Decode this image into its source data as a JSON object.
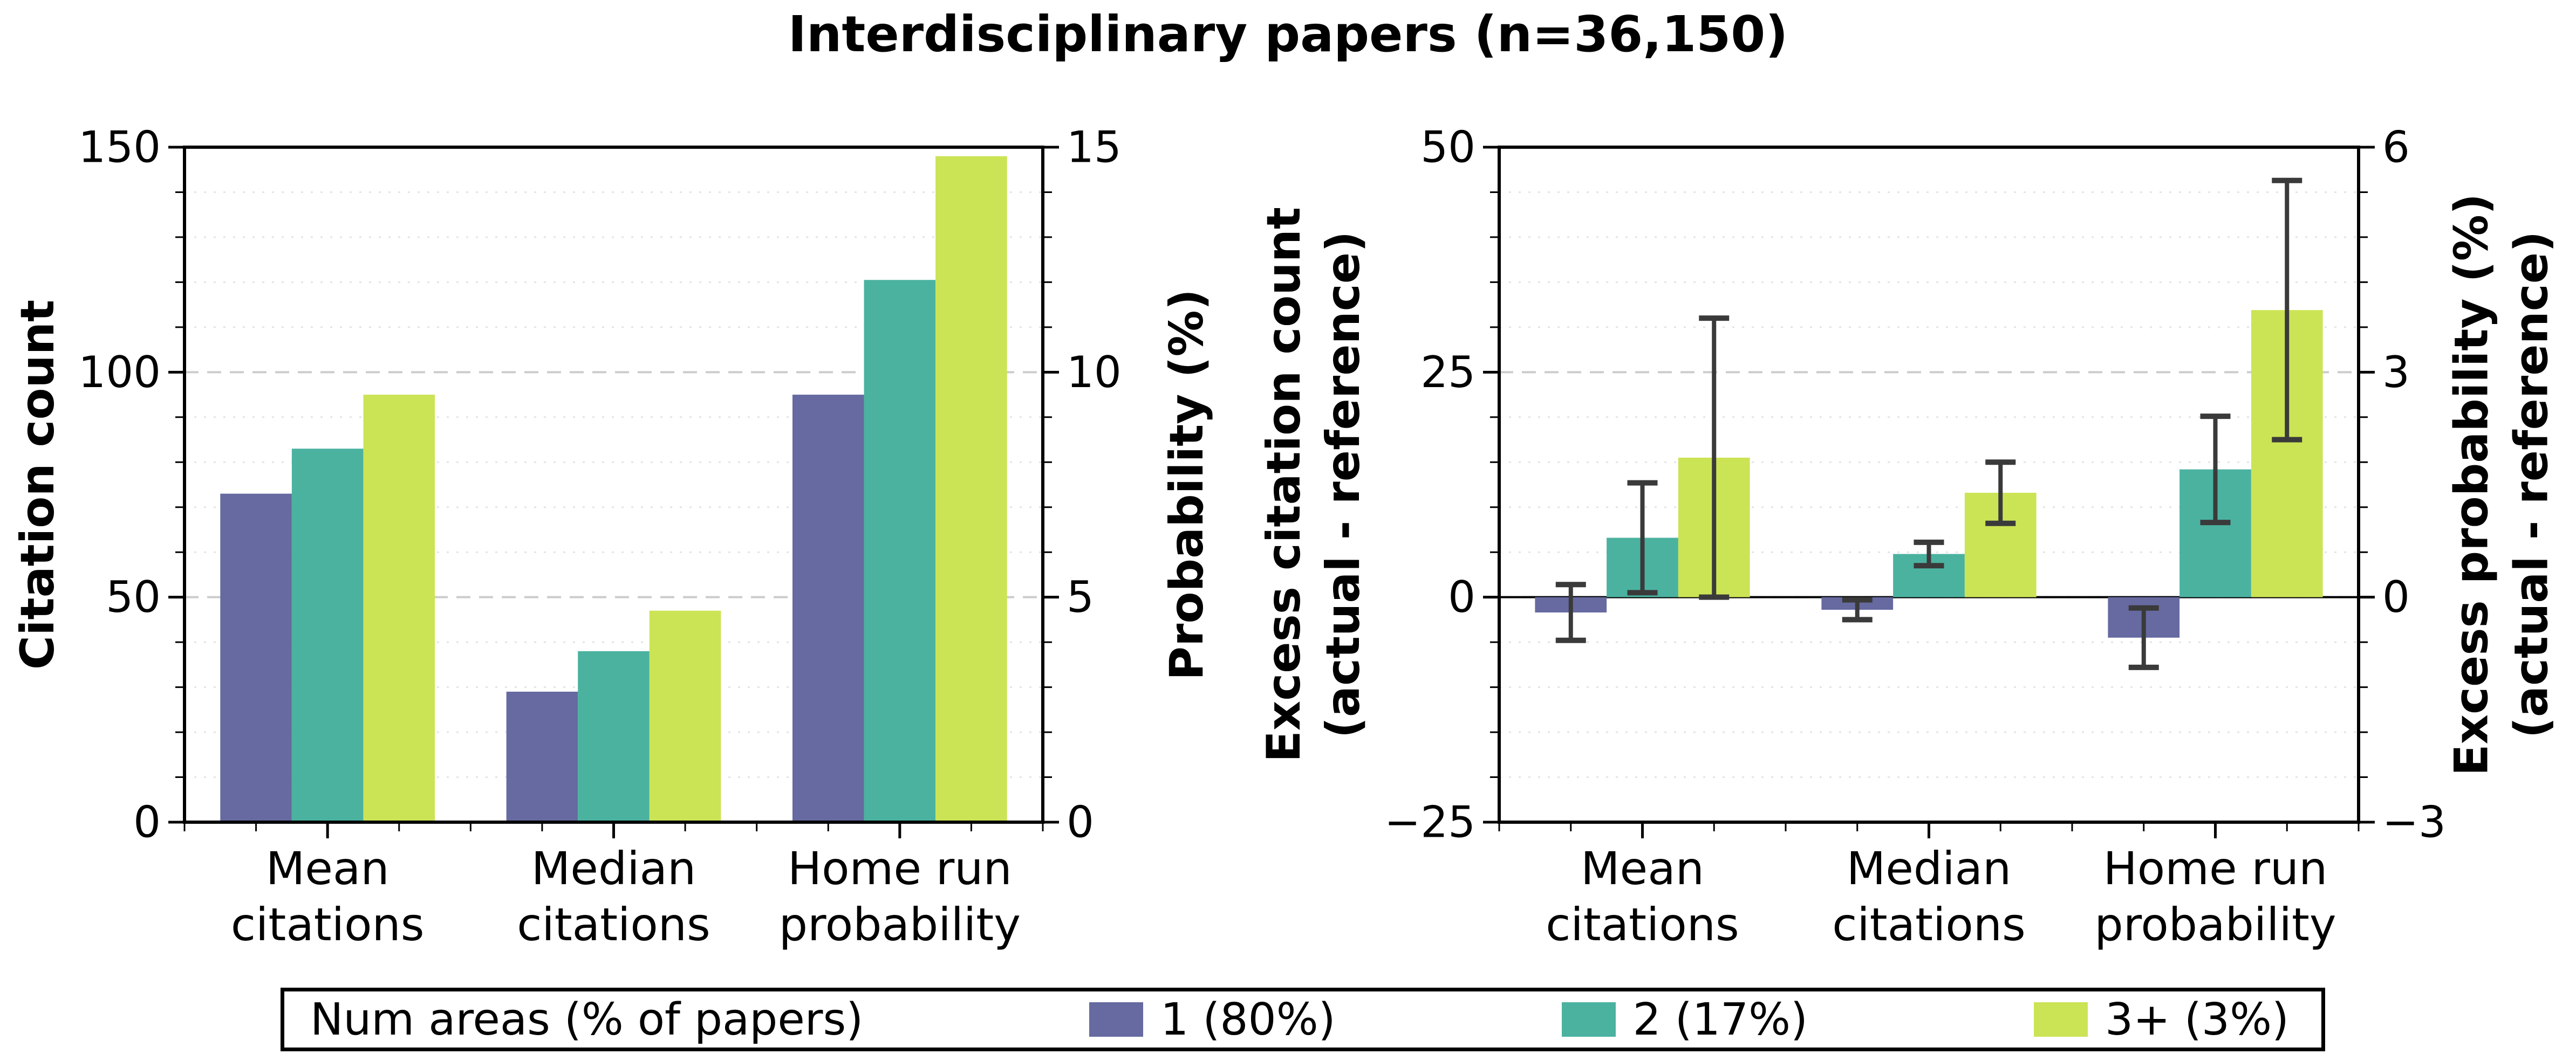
{
  "title": "Interdisciplinary papers (n=36,150)",
  "colors": {
    "purple": "#666AA0",
    "teal": "#4BB2A0",
    "green": "#CBE455",
    "errorbar": "#3A3A3A",
    "grid_major": "#cccccc",
    "grid_minor": "#e4e4e4",
    "axis": "#000000",
    "background": "#ffffff"
  },
  "legend": {
    "title": "Num areas (% of papers)",
    "items": [
      {
        "label": "1 (80%)",
        "color_key": "purple"
      },
      {
        "label": "2 (17%)",
        "color_key": "teal"
      },
      {
        "label": "3+ (3%)",
        "color_key": "green"
      }
    ],
    "position": "bottom"
  },
  "chart_data": [
    {
      "type": "bar",
      "panel": "left",
      "categories": [
        "Mean\ncitations",
        "Median\ncitations",
        "Home run\nprobability"
      ],
      "left_axis": {
        "label": "Citation count",
        "lim": [
          0,
          150
        ],
        "ticks": [
          0,
          50,
          100,
          150
        ],
        "tick_labels": [
          "0",
          "50",
          "100",
          "150"
        ],
        "minor_step": 10
      },
      "right_axis": {
        "label": "Probability (%)",
        "lim": [
          0,
          15
        ],
        "ticks": [
          0,
          5,
          10,
          15
        ],
        "tick_labels": [
          "0",
          "5",
          "10",
          "15"
        ],
        "minor_step": 1
      },
      "grid": {
        "major": "dashed",
        "minor": "dotted"
      },
      "series": [
        {
          "name": "1 (80%)",
          "color_key": "purple",
          "values": [
            73,
            29,
            95
          ]
        },
        {
          "name": "2 (17%)",
          "color_key": "teal",
          "values": [
            83,
            38,
            120.5
          ]
        },
        {
          "name": "3+ (3%)",
          "color_key": "green",
          "values": [
            95,
            47,
            148
          ]
        }
      ],
      "note": "Home run probability bars are read on the right axis: 9.5%, 12.05%, 14.8%"
    },
    {
      "type": "bar",
      "panel": "right",
      "categories": [
        "Mean\ncitations",
        "Median\ncitations",
        "Home run\nprobability"
      ],
      "left_axis": {
        "label": "Excess citation count\n(actual - reference)",
        "lim": [
          -25,
          50
        ],
        "ticks": [
          -25,
          0,
          25,
          50
        ],
        "tick_labels": [
          "−25",
          "0",
          "25",
          "50"
        ],
        "minor_step": 5
      },
      "right_axis": {
        "label": "Excess probability (%)\n(actual - reference)",
        "lim": [
          -3,
          6
        ],
        "ticks": [
          -3,
          0,
          3,
          6
        ],
        "tick_labels": [
          "−3",
          "0",
          "3",
          "6"
        ],
        "minor_step": 0.6
      },
      "grid": {
        "major": "dashed",
        "minor": "dotted"
      },
      "zero_line": true,
      "series": [
        {
          "name": "1 (80%)",
          "color_key": "purple",
          "values": [
            -1.7,
            -1.4,
            -4.5
          ],
          "errors": [
            3.1,
            1.1,
            3.3
          ]
        },
        {
          "name": "2 (17%)",
          "color_key": "teal",
          "values": [
            6.6,
            4.8,
            14.2
          ],
          "errors": [
            6.1,
            1.3,
            5.9
          ]
        },
        {
          "name": "3+ (3%)",
          "color_key": "green",
          "values": [
            15.5,
            11.6,
            31.9
          ],
          "errors": [
            15.5,
            3.4,
            14.4
          ]
        }
      ],
      "note": "Home run probability bars are read on the right axis (right = left × 0.12): −0.54%, +1.70%, +3.83%"
    }
  ]
}
